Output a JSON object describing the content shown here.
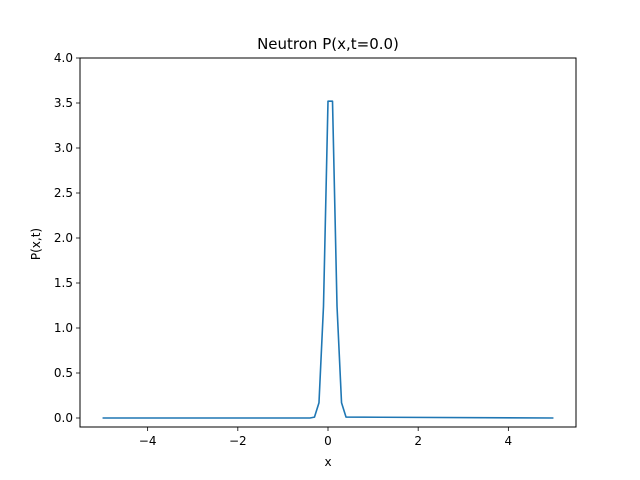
{
  "chart_data": {
    "type": "line",
    "title": "Neutron P(x,t=0.0)",
    "xlabel": "x",
    "ylabel": "P(x,t)",
    "xlim": [
      -5.5,
      5.5
    ],
    "ylim": [
      -0.1,
      4.0
    ],
    "xticks": [
      -4,
      -2,
      0,
      2,
      4
    ],
    "xtick_labels": [
      "−4",
      "−2",
      "0",
      "2",
      "4"
    ],
    "yticks": [
      0.0,
      0.5,
      1.0,
      1.5,
      2.0,
      2.5,
      3.0,
      3.5,
      4.0
    ],
    "ytick_labels": [
      "0.0",
      "0.5",
      "1.0",
      "1.5",
      "2.0",
      "2.5",
      "3.0",
      "3.5",
      "4.0"
    ],
    "grid": false,
    "series": [
      {
        "color": "#1f77b4",
        "x": [
          -5.0,
          -0.4,
          -0.3,
          -0.2,
          -0.1,
          0.0,
          0.1,
          0.2,
          0.3,
          0.4,
          5.0
        ],
        "y": [
          0.0,
          0.0,
          0.01,
          0.17,
          1.24,
          3.52,
          3.52,
          1.24,
          0.17,
          0.01,
          0.0
        ]
      }
    ]
  }
}
